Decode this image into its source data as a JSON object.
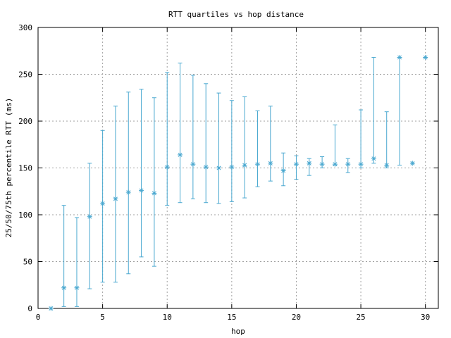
{
  "chart_data": {
    "type": "scatter",
    "title": "RTT quartiles vs hop distance",
    "xlabel": "hop",
    "ylabel": "25/50/75th percentile RTT (ms)",
    "xlim": [
      0,
      31
    ],
    "ylim": [
      0,
      300
    ],
    "xticks": [
      0,
      5,
      10,
      15,
      20,
      25,
      30
    ],
    "yticks": [
      0,
      50,
      100,
      150,
      200,
      250,
      300
    ],
    "grid": true,
    "color": "#4aa8d0",
    "points": [
      {
        "hop": 1,
        "p25": 0,
        "p50": 0,
        "p75": 0
      },
      {
        "hop": 2,
        "p25": 2,
        "p50": 22,
        "p75": 110
      },
      {
        "hop": 3,
        "p25": 2,
        "p50": 22,
        "p75": 97
      },
      {
        "hop": 4,
        "p25": 21,
        "p50": 98,
        "p75": 155
      },
      {
        "hop": 5,
        "p25": 28,
        "p50": 112,
        "p75": 190
      },
      {
        "hop": 6,
        "p25": 28,
        "p50": 117,
        "p75": 216
      },
      {
        "hop": 7,
        "p25": 37,
        "p50": 124,
        "p75": 231
      },
      {
        "hop": 8,
        "p25": 55,
        "p50": 126,
        "p75": 234
      },
      {
        "hop": 9,
        "p25": 45,
        "p50": 123,
        "p75": 225
      },
      {
        "hop": 10,
        "p25": 110,
        "p50": 151,
        "p75": 252
      },
      {
        "hop": 11,
        "p25": 113,
        "p50": 164,
        "p75": 262
      },
      {
        "hop": 12,
        "p25": 117,
        "p50": 154,
        "p75": 249
      },
      {
        "hop": 13,
        "p25": 113,
        "p50": 151,
        "p75": 240
      },
      {
        "hop": 14,
        "p25": 112,
        "p50": 150,
        "p75": 230
      },
      {
        "hop": 15,
        "p25": 114,
        "p50": 151,
        "p75": 222
      },
      {
        "hop": 16,
        "p25": 118,
        "p50": 153,
        "p75": 226
      },
      {
        "hop": 17,
        "p25": 130,
        "p50": 154,
        "p75": 211
      },
      {
        "hop": 18,
        "p25": 136,
        "p50": 155,
        "p75": 216
      },
      {
        "hop": 19,
        "p25": 131,
        "p50": 147,
        "p75": 166
      },
      {
        "hop": 20,
        "p25": 138,
        "p50": 154,
        "p75": 163
      },
      {
        "hop": 21,
        "p25": 142,
        "p50": 155,
        "p75": 160
      },
      {
        "hop": 22,
        "p25": 150,
        "p50": 154,
        "p75": 162
      },
      {
        "hop": 23,
        "p25": 153,
        "p50": 154,
        "p75": 196
      },
      {
        "hop": 24,
        "p25": 145,
        "p50": 154,
        "p75": 160
      },
      {
        "hop": 25,
        "p25": 150,
        "p50": 154,
        "p75": 212
      },
      {
        "hop": 26,
        "p25": 155,
        "p50": 160,
        "p75": 268
      },
      {
        "hop": 27,
        "p25": 150,
        "p50": 153,
        "p75": 210
      },
      {
        "hop": 28,
        "p25": 153,
        "p50": 268,
        "p75": 268
      },
      {
        "hop": 29,
        "p25": 155,
        "p50": 155,
        "p75": 155
      },
      {
        "hop": 30,
        "p25": 268,
        "p50": 268,
        "p75": 268
      }
    ]
  }
}
